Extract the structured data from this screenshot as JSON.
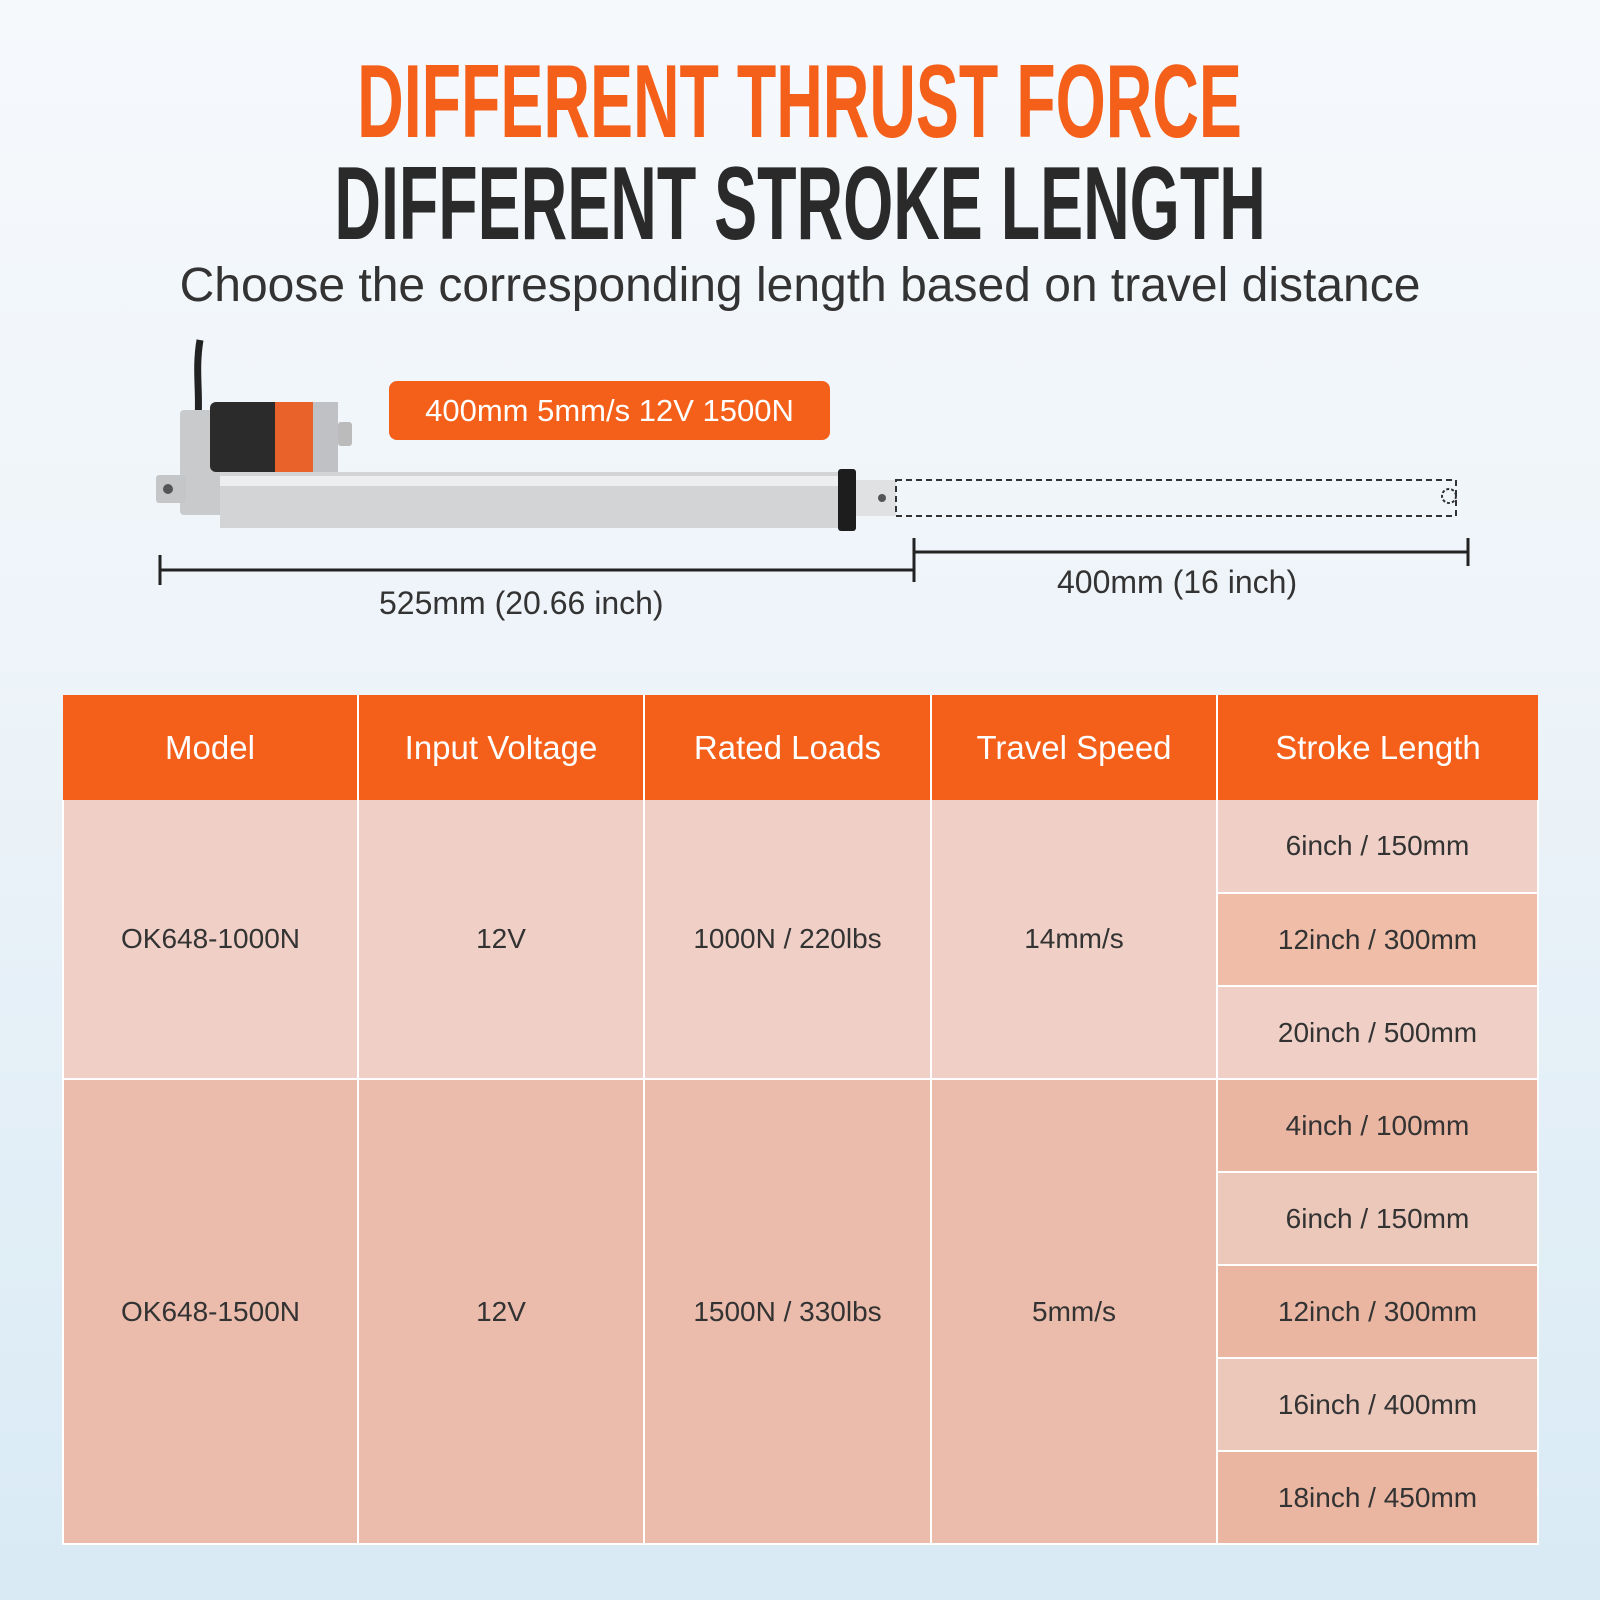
{
  "headline": {
    "line1": "DIFFERENT THRUST FORCE",
    "line2": "DIFFERENT STROKE LENGTH"
  },
  "subtitle": "Choose the corresponding length based on travel distance",
  "product_badge": "400mm 5mm/s 12V 1500N",
  "dimensions": {
    "retracted": "525mm (20.66 inch)",
    "stroke": "400mm (16 inch)"
  },
  "colors": {
    "accent": "#f45f1a",
    "dark_text": "#2a2a2a",
    "group1_bg": "#f0d0c6",
    "group2_bg": "#ebbcab"
  },
  "table": {
    "headers": [
      "Model",
      "Input Voltage",
      "Rated Loads",
      "Travel Speed",
      "Stroke Length"
    ],
    "groups": [
      {
        "model": "OK648-1000N",
        "voltage": "12V",
        "load": "1000N / 220lbs",
        "speed": "14mm/s",
        "strokes": [
          "6inch / 150mm",
          "12inch / 300mm",
          "20inch / 500mm"
        ]
      },
      {
        "model": "OK648-1500N",
        "voltage": "12V",
        "load": "1500N / 330lbs",
        "speed": "5mm/s",
        "strokes": [
          "4inch / 100mm",
          "6inch / 150mm",
          "12inch / 300mm",
          "16inch / 400mm",
          "18inch / 450mm"
        ]
      }
    ]
  }
}
